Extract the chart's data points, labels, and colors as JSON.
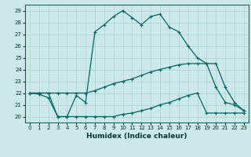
{
  "xlabel": "Humidex (Indice chaleur)",
  "background_color": "#cde8e8",
  "grid_color": "#b0d0d0",
  "line_color": "#006666",
  "xlim": [
    -0.5,
    23.5
  ],
  "ylim": [
    19.5,
    29.5
  ],
  "xticks": [
    0,
    1,
    2,
    3,
    4,
    5,
    6,
    7,
    8,
    9,
    10,
    11,
    12,
    13,
    14,
    15,
    16,
    17,
    18,
    19,
    20,
    21,
    22,
    23
  ],
  "yticks": [
    20,
    21,
    22,
    23,
    24,
    25,
    26,
    27,
    28,
    29
  ],
  "line1_x": [
    0,
    1,
    2,
    3,
    4,
    5,
    6,
    7,
    8,
    9,
    10,
    11,
    12,
    13,
    14,
    15,
    16,
    17,
    18,
    19,
    20,
    21,
    22,
    23
  ],
  "line1_y": [
    22.0,
    21.9,
    21.6,
    20.0,
    20.0,
    21.8,
    21.2,
    27.2,
    27.8,
    28.5,
    29.0,
    28.4,
    27.8,
    28.5,
    28.7,
    27.6,
    27.2,
    26.0,
    25.0,
    24.5,
    22.5,
    21.2,
    21.0,
    20.5
  ],
  "line2_x": [
    0,
    1,
    2,
    3,
    4,
    5,
    6,
    7,
    8,
    9,
    10,
    11,
    12,
    13,
    14,
    15,
    16,
    17,
    18,
    19,
    20,
    21,
    22,
    23
  ],
  "line2_y": [
    22.0,
    22.0,
    22.0,
    22.0,
    22.0,
    22.0,
    22.0,
    22.2,
    22.5,
    22.8,
    23.0,
    23.2,
    23.5,
    23.8,
    24.0,
    24.2,
    24.4,
    24.5,
    24.5,
    24.5,
    24.5,
    22.5,
    21.2,
    20.5
  ],
  "line3_x": [
    0,
    1,
    2,
    3,
    4,
    5,
    6,
    7,
    8,
    9,
    10,
    11,
    12,
    13,
    14,
    15,
    16,
    17,
    18,
    19,
    20,
    21,
    22,
    23
  ],
  "line3_y": [
    22.0,
    22.0,
    22.0,
    20.0,
    20.0,
    20.0,
    20.0,
    20.0,
    20.0,
    20.0,
    20.2,
    20.3,
    20.5,
    20.7,
    21.0,
    21.2,
    21.5,
    21.8,
    22.0,
    20.3,
    20.3,
    20.3,
    20.3,
    20.3
  ]
}
